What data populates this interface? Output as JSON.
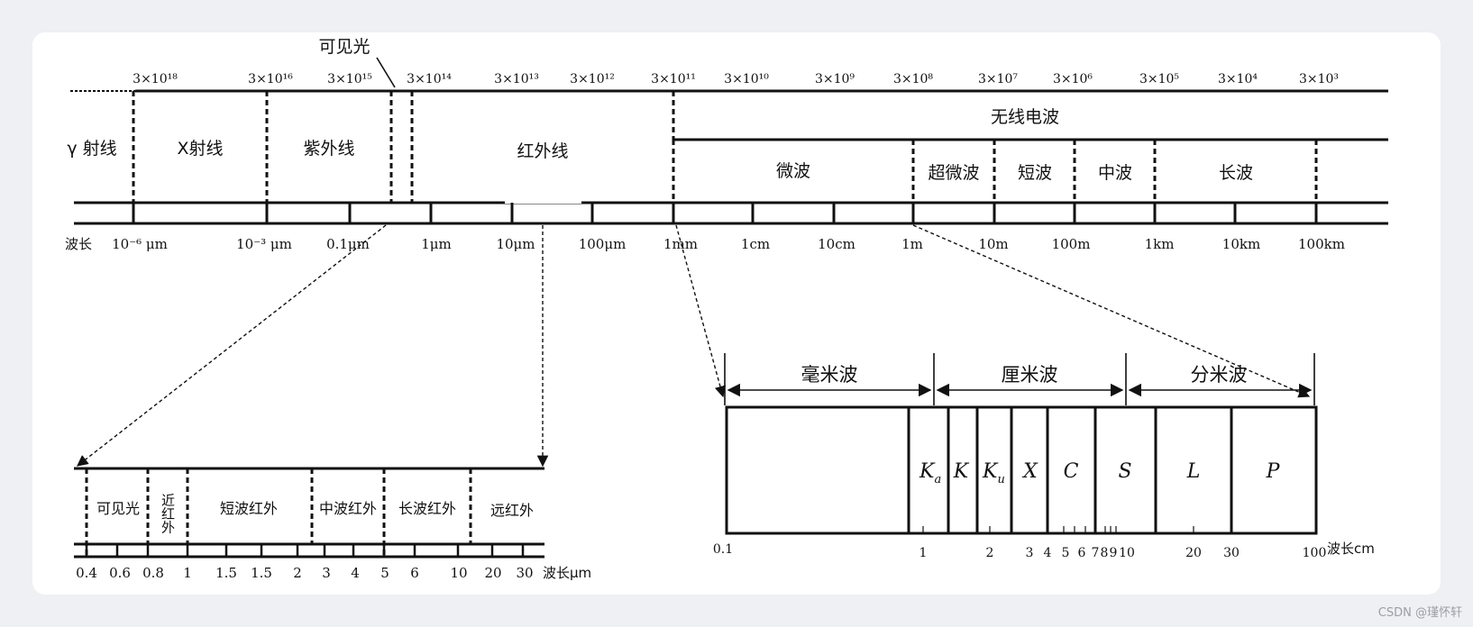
{
  "colors": {
    "ink": "#111111",
    "page": "#eef0f3",
    "card": "#ffffff",
    "watermark": "#9a9fa6"
  },
  "main": {
    "frequencies": [
      "3×10¹⁸",
      "3×10¹⁶",
      "3×10¹⁵",
      "3×10¹⁴",
      "3×10¹³",
      "3×10¹²",
      "3×10¹¹",
      "3×10¹⁰",
      "3×10⁹",
      "3×10⁸",
      "3×10⁷",
      "3×10⁶",
      "3×10⁵",
      "3×10⁴",
      "3×10³"
    ],
    "visible_label": "可见光",
    "bands": [
      "γ 射线",
      "X射线",
      "紫外线",
      "红外线"
    ],
    "radio_label": "无线电波",
    "radio_bands": [
      "微波",
      "超微波",
      "短波",
      "中波",
      "长波"
    ],
    "wavelength_prefix": "波长",
    "wavelengths": [
      "10⁻⁶ μm",
      "10⁻³ μm",
      "0.1μm",
      "1μm",
      "10μm",
      "100μm",
      "1mm",
      "1cm",
      "10cm",
      "1m",
      "10m",
      "100m",
      "1km",
      "10km",
      "100km"
    ]
  },
  "infrared_detail": {
    "bands": [
      "可见光",
      "近红外",
      "短波红外",
      "中波红外",
      "长波红外",
      "远红外"
    ],
    "ticks": [
      "0.4",
      "0.6",
      "0.8",
      "1",
      "1.5",
      "1.5",
      "2",
      "3",
      "4",
      "5",
      "6",
      "10",
      "20",
      "30"
    ],
    "unit": "波长μm"
  },
  "microwave_detail": {
    "groups": [
      "毫米波",
      "厘米波",
      "分米波"
    ],
    "bands": [
      {
        "base": "K",
        "sub": "a"
      },
      {
        "base": "K",
        "sub": ""
      },
      {
        "base": "K",
        "sub": "u"
      },
      {
        "base": "X",
        "sub": ""
      },
      {
        "base": "C",
        "sub": ""
      },
      {
        "base": "S",
        "sub": ""
      },
      {
        "base": "L",
        "sub": ""
      },
      {
        "base": "P",
        "sub": ""
      }
    ],
    "ticks": [
      "0.1",
      "1",
      "2",
      "3",
      "4",
      "5",
      "6",
      "7",
      "8",
      "9",
      "10",
      "20",
      "30",
      "100"
    ],
    "unit": "波长cm"
  },
  "watermark": "CSDN @瑾怀轩"
}
